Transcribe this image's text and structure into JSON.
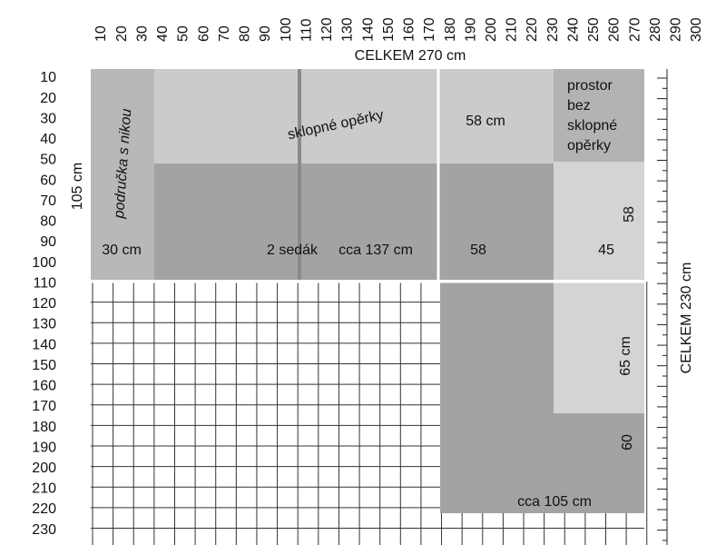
{
  "top_axis": {
    "ticks": [
      10,
      20,
      30,
      40,
      50,
      60,
      70,
      80,
      90,
      100,
      110,
      120,
      130,
      140,
      150,
      160,
      170,
      180,
      190,
      200,
      210,
      220,
      230,
      240,
      250,
      260,
      270,
      280,
      290,
      300
    ],
    "label": "CELKEM 270 cm"
  },
  "left_axis": {
    "ticks": [
      10,
      20,
      30,
      40,
      50,
      60,
      70,
      80,
      90,
      100,
      110,
      120,
      130,
      140,
      150,
      160,
      170,
      180,
      190,
      200,
      210,
      220,
      230
    ],
    "label": "105 cm"
  },
  "right_axis": {
    "label": "CELKEM 230 cm"
  },
  "labels": {
    "armrest": "područka s nikou",
    "backrests": "sklopné opěrky",
    "backrest_width": "58 cm",
    "free_space": [
      "prostor",
      "bez",
      "sklopné",
      "opěrky"
    ],
    "armrest_width": "30 cm",
    "seats": "2 sedák",
    "seats_width": "cca 137 cm",
    "seat_58": "58",
    "seat_45": "45",
    "depth_58": "58",
    "depth_65": "65 cm",
    "depth_60": "60",
    "corner_width": "cca 105 cm"
  }
}
